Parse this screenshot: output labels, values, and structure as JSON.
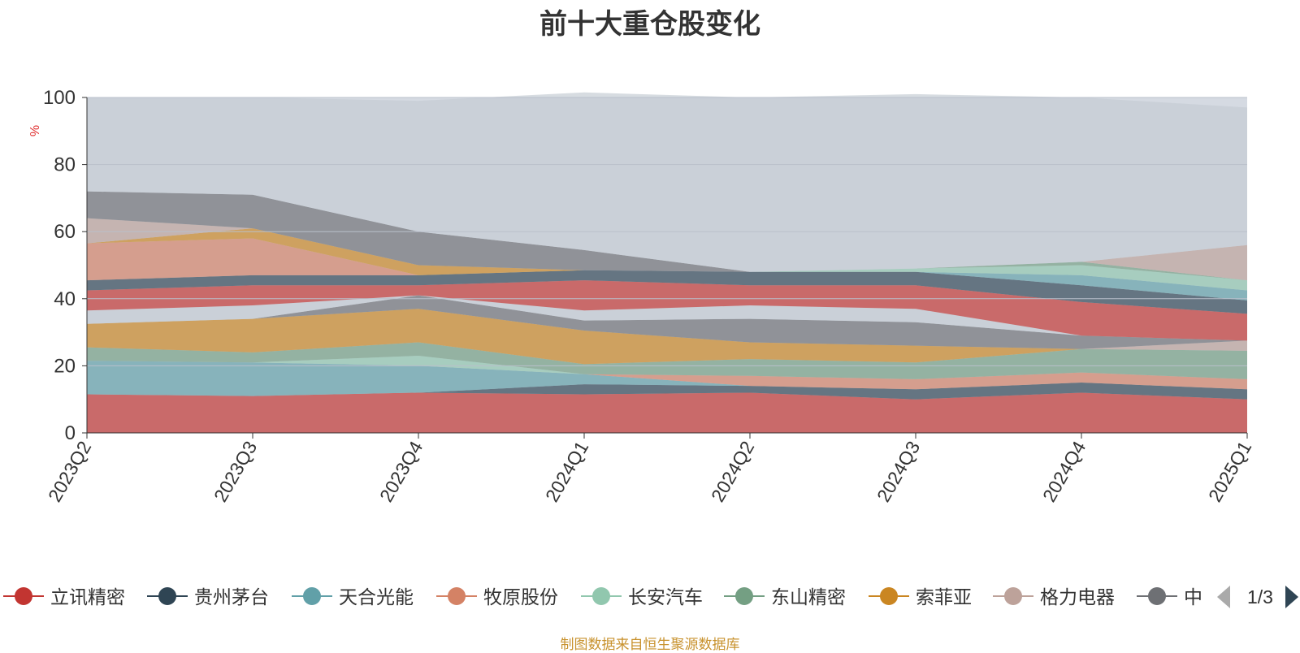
{
  "chart_data": {
    "type": "area",
    "stacked": true,
    "title": "前十大重仓股变化",
    "ylabel": "%",
    "ylim": [
      0,
      100
    ],
    "yticks": [
      0,
      20,
      40,
      60,
      80,
      100
    ],
    "categories": [
      "2023Q2",
      "2023Q3",
      "2023Q4",
      "2024Q1",
      "2024Q2",
      "2024Q3",
      "2024Q4",
      "2025Q1"
    ],
    "grid": true,
    "legend_position": "bottom",
    "series": [
      {
        "name": "立讯精密",
        "color": "#c23531",
        "values": [
          11.5,
          11,
          12,
          11.5,
          12,
          10,
          12,
          10
        ]
      },
      {
        "name": "贵州茅台",
        "color": "#2f4554",
        "values": [
          0,
          0,
          0,
          3,
          2,
          3,
          3,
          3
        ]
      },
      {
        "name": "天合光能",
        "color": "#61a0a8",
        "values": [
          10,
          10,
          8,
          3,
          0,
          0,
          0,
          0
        ]
      },
      {
        "name": "牧原股份",
        "color": "#d48265",
        "values": [
          0,
          0,
          0,
          0,
          3,
          3,
          3,
          3
        ]
      },
      {
        "name": "长安汽车",
        "color": "#91c7ae",
        "values": [
          0,
          0,
          3,
          0,
          0,
          0,
          0,
          0
        ]
      },
      {
        "name": "东山精密",
        "color": "#749f83",
        "values": [
          4,
          3,
          4,
          3,
          5,
          5,
          7,
          8.5
        ]
      },
      {
        "name": "索菲亚",
        "color": "#ca8622",
        "values": [
          7,
          10,
          10,
          10,
          5,
          5,
          0,
          0
        ]
      },
      {
        "name": "格力电器",
        "color": "#bda29a",
        "values": [
          0,
          0,
          0,
          0,
          0,
          0,
          0,
          3
        ]
      },
      {
        "name": "中",
        "color": "#6e7074",
        "values": [
          0,
          0,
          4,
          3,
          7,
          7,
          4,
          0
        ]
      },
      {
        "name": "",
        "color": "#546570",
        "values": [
          0,
          0,
          0,
          0,
          0,
          0,
          0,
          0
        ]
      },
      {
        "name": "",
        "color": "#c4ccd3",
        "values": [
          4,
          4,
          0,
          3,
          4,
          4,
          0,
          0
        ]
      },
      {
        "name": "",
        "color": "#c23531",
        "values": [
          6,
          6,
          3,
          9,
          6,
          7,
          10,
          8
        ]
      },
      {
        "name": "",
        "color": "#2f4554",
        "values": [
          3,
          3,
          3,
          3,
          4,
          4,
          5,
          4
        ]
      },
      {
        "name": "",
        "color": "#61a0a8",
        "values": [
          0,
          0,
          0,
          0,
          0,
          0,
          3,
          3
        ]
      },
      {
        "name": "",
        "color": "#91c7ae",
        "values": [
          0,
          0,
          0,
          0,
          0,
          1,
          3,
          3
        ]
      },
      {
        "name": "",
        "color": "#749f83",
        "values": [
          0,
          0,
          0,
          0,
          0,
          0,
          1,
          0
        ]
      },
      {
        "name": "",
        "color": "#d48265",
        "values": [
          11,
          11,
          0,
          0,
          0,
          0,
          0,
          0
        ]
      },
      {
        "name": "",
        "color": "#ca8622",
        "values": [
          0,
          3,
          3,
          0,
          0,
          0,
          0,
          0
        ]
      },
      {
        "name": "",
        "color": "#bda29a",
        "values": [
          7.5,
          0,
          0,
          0,
          0,
          0,
          0,
          10.5
        ]
      },
      {
        "name": "",
        "color": "#6e7074",
        "values": [
          8,
          10,
          10,
          6,
          0,
          0,
          0,
          0
        ]
      },
      {
        "name": "",
        "color": "#c4ccd3",
        "values": [
          28,
          29,
          39,
          47,
          52,
          52,
          49,
          41
        ]
      }
    ]
  },
  "legend": {
    "page_label": "1/3",
    "items": [
      "立讯精密",
      "贵州茅台",
      "天合光能",
      "牧原股份",
      "长安汽车",
      "东山精密",
      "索菲亚",
      "格力电器",
      "中"
    ]
  },
  "footer": "制图数据来自恒生聚源数据库"
}
